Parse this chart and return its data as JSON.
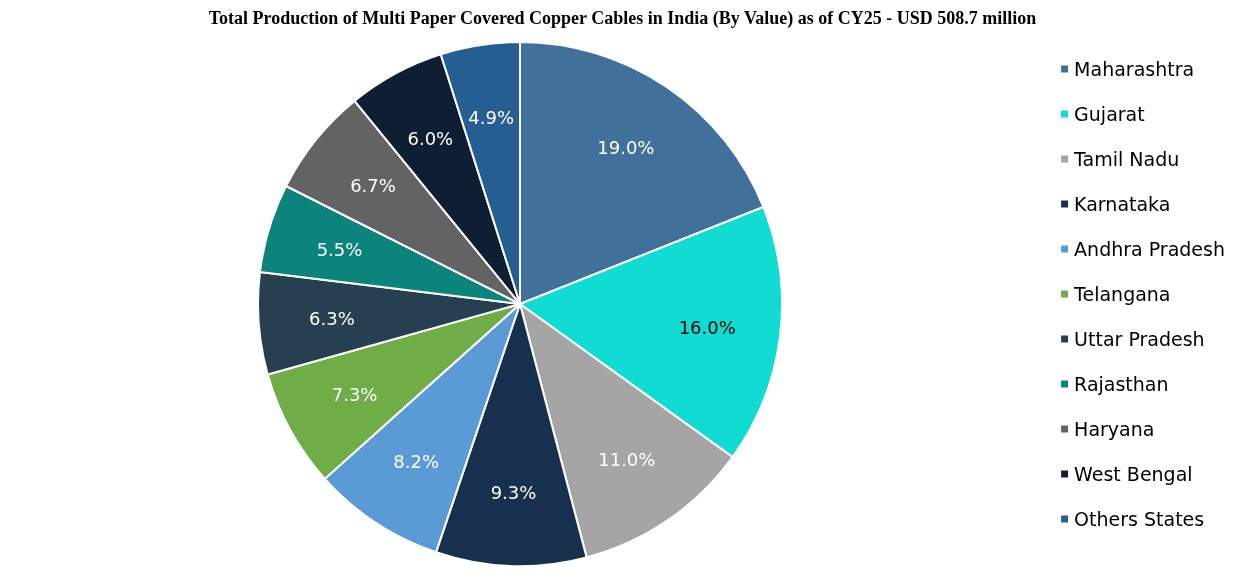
{
  "chart_data": {
    "type": "pie",
    "title": "Total Production of Multi Paper Covered Copper Cables in India (By Value) as of CY25 - USD 508.7 million",
    "categories": [
      "Maharashtra",
      "Gujarat",
      "Tamil Nadu",
      "Karnataka",
      "Andhra Pradesh",
      "Telangana",
      "Uttar Pradesh",
      "Rajasthan",
      "Haryana",
      "West Bengal",
      "Others States"
    ],
    "values": [
      19.0,
      16.0,
      11.0,
      9.3,
      8.2,
      7.3,
      6.3,
      5.5,
      6.7,
      6.0,
      4.9
    ],
    "value_labels": [
      "19.0%",
      "16.0%",
      "11.0%",
      "9.3%",
      "8.2%",
      "7.3%",
      "6.3%",
      "5.5%",
      "6.7%",
      "6.0%",
      "4.9%"
    ],
    "colors": [
      "#41709a",
      "#10dcd4",
      "#a5a5a5",
      "#16304d",
      "#5b9bd5",
      "#70ad47",
      "#264052",
      "#0b847c",
      "#636363",
      "#0f1f33",
      "#255e91"
    ],
    "legend": "right"
  }
}
